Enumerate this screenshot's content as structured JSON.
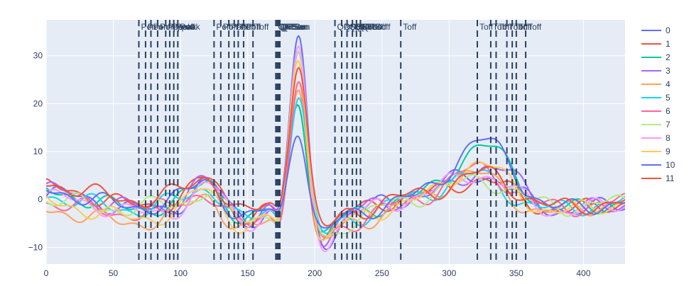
{
  "chart_data": {
    "type": "line",
    "title": "",
    "xlabel": "",
    "ylabel": "",
    "xlim": [
      0,
      431
    ],
    "ylim": [
      -13.5,
      37.5
    ],
    "x_ticks": [
      0,
      50,
      100,
      150,
      200,
      250,
      300,
      350,
      400
    ],
    "y_ticks": [
      -10,
      0,
      10,
      20,
      30
    ],
    "grid": true,
    "legend_position": "right",
    "background": "#e5ecf6",
    "series": [
      {
        "name": "0",
        "color": "#636efa",
        "peak": 35,
        "offset": 1.0,
        "phase": 0.0,
        "tw": 6
      },
      {
        "name": "1",
        "color": "#ef553b",
        "peak": 20,
        "offset": 2.5,
        "phase": 1.3,
        "tw": 4
      },
      {
        "name": "2",
        "color": "#00cc96",
        "peak": 22,
        "offset": 1.5,
        "phase": 2.1,
        "tw": 11
      },
      {
        "name": "3",
        "color": "#ab63fa",
        "peak": 31,
        "offset": 1.8,
        "phase": 0.7,
        "tw": 7
      },
      {
        "name": "4",
        "color": "#ffa15a",
        "peak": 28,
        "offset": -3.0,
        "phase": 2.9,
        "tw": 6
      },
      {
        "name": "5",
        "color": "#19d3f3",
        "peak": 23,
        "offset": 1.0,
        "phase": 3.7,
        "tw": 5
      },
      {
        "name": "6",
        "color": "#ff6692",
        "peak": 25,
        "offset": -0.5,
        "phase": 4.4,
        "tw": 7
      },
      {
        "name": "7",
        "color": "#b6e880",
        "peak": 30,
        "offset": 0.5,
        "phase": 5.2,
        "tw": 5
      },
      {
        "name": "8",
        "color": "#ff97ff",
        "peak": 33,
        "offset": 0.0,
        "phase": 0.4,
        "tw": 6
      },
      {
        "name": "9",
        "color": "#fecb52",
        "peak": 32,
        "offset": -1.5,
        "phase": 1.8,
        "tw": 8
      },
      {
        "name": "10",
        "color": "#636efa",
        "peak": 16,
        "offset": 2.0,
        "phase": 2.6,
        "tw": 12
      },
      {
        "name": "11",
        "color": "#ef553b",
        "peak": 29,
        "offset": 4.0,
        "phase": 3.3,
        "tw": 5
      }
    ],
    "annotation_lines": [
      {
        "x": 69,
        "label": "Pon"
      },
      {
        "x": 74,
        "label": "Pon"
      },
      {
        "x": 78,
        "label": "Pon"
      },
      {
        "x": 83,
        "label": "Pon"
      },
      {
        "x": 89,
        "label": "Ppeak"
      },
      {
        "x": 92,
        "label": "Ppeak"
      },
      {
        "x": 95,
        "label": "Ppeak"
      },
      {
        "x": 98,
        "label": "Poff"
      },
      {
        "x": 125,
        "label": "Poff"
      },
      {
        "x": 130,
        "label": "Poff"
      },
      {
        "x": 136,
        "label": "Poff"
      },
      {
        "x": 140,
        "label": "Poff"
      },
      {
        "x": 143,
        "label": "Poff"
      },
      {
        "x": 147,
        "label": "Poff"
      },
      {
        "x": 154,
        "label": "Toff"
      },
      {
        "x": 171,
        "label": "QRSon"
      },
      {
        "x": 172,
        "label": "QRSon"
      },
      {
        "x": 173,
        "label": "QRSon"
      },
      {
        "x": 174,
        "label": "QRSon"
      },
      {
        "x": 215,
        "label": "QRSoff"
      },
      {
        "x": 220,
        "label": "QRSoff"
      },
      {
        "x": 224,
        "label": "QRSoff"
      },
      {
        "x": 228,
        "label": "QRSoff"
      },
      {
        "x": 231,
        "label": "QRSoff"
      },
      {
        "x": 234,
        "label": "QRSoff"
      },
      {
        "x": 264,
        "label": "Toff"
      },
      {
        "x": 321,
        "label": "Toff"
      },
      {
        "x": 331,
        "label": "Toff"
      },
      {
        "x": 335,
        "label": "Toff"
      },
      {
        "x": 343,
        "label": "Toff"
      },
      {
        "x": 347,
        "label": "Toff"
      },
      {
        "x": 350,
        "label": "Toff"
      },
      {
        "x": 357,
        "label": "Toff"
      }
    ]
  }
}
